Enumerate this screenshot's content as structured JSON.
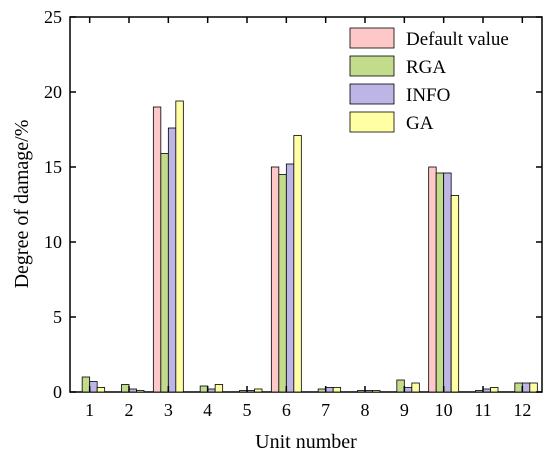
{
  "chart_data": {
    "type": "bar",
    "xlabel": "Unit number",
    "ylabel": "Degree of damage/%",
    "ylim": [
      0,
      25
    ],
    "yticks": [
      0,
      5,
      10,
      15,
      20,
      25
    ],
    "categories": [
      "1",
      "2",
      "3",
      "4",
      "5",
      "6",
      "7",
      "8",
      "9",
      "10",
      "11",
      "12"
    ],
    "series": [
      {
        "name": "Default value",
        "color": "#FFC8C8",
        "values": [
          0,
          0,
          19.0,
          0,
          0,
          15.0,
          0,
          0,
          0,
          15.0,
          0,
          0
        ]
      },
      {
        "name": "RGA",
        "color": "#C2DC8C",
        "values": [
          1.0,
          0.5,
          15.9,
          0.4,
          0.1,
          14.5,
          0.2,
          0.1,
          0.8,
          14.6,
          0.1,
          0.6
        ]
      },
      {
        "name": "INFO",
        "color": "#BCB5E6",
        "values": [
          0.7,
          0.2,
          17.6,
          0.2,
          0.1,
          15.2,
          0.3,
          0.1,
          0.3,
          14.6,
          0.2,
          0.6
        ]
      },
      {
        "name": "GA",
        "color": "#FFFFA4",
        "values": [
          0.3,
          0.1,
          19.4,
          0.5,
          0.2,
          17.1,
          0.3,
          0.1,
          0.6,
          13.1,
          0.3,
          0.6
        ]
      }
    ],
    "legend": "top-right",
    "grid": false
  }
}
